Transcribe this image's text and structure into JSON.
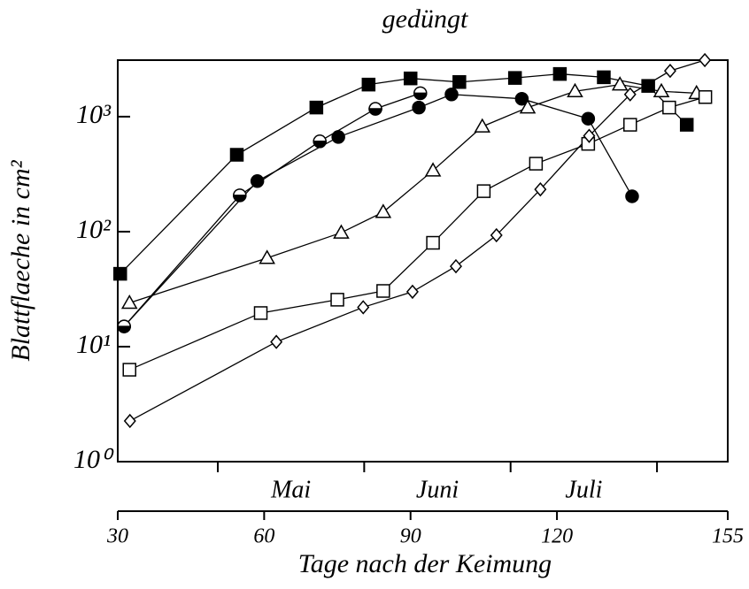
{
  "chart_data": {
    "type": "line",
    "title": "gedüngt",
    "x_label": "Tage nach der Keimung",
    "y_label": "Blattflaeche in cm²",
    "log_y": true,
    "xlim": [
      30,
      155
    ],
    "xticks": [
      30,
      60,
      90,
      120,
      155
    ],
    "ylim": [
      1,
      3100
    ],
    "yticks": [
      {
        "value": 1,
        "label": "10⁰"
      },
      {
        "value": 10,
        "label": "10¹"
      },
      {
        "value": 100,
        "label": "10²"
      },
      {
        "value": 1000,
        "label": "10³"
      }
    ],
    "months": [
      "Mai",
      "Juni",
      "Juli"
    ],
    "month_bounds": [
      50.5,
      80.5,
      110.5,
      140.5
    ],
    "series": [
      {
        "marker": "square",
        "filled": true,
        "color": "#000",
        "x": [
          30.5,
          54.4,
          70.7,
          81.4,
          90,
          100,
          111.4,
          120.6,
          129.6,
          138.7,
          146.6
        ],
        "values": [
          43,
          466,
          1200,
          1900,
          2150,
          2000,
          2170,
          2350,
          2200,
          1850,
          850
        ]
      },
      {
        "marker": "circle",
        "filled": true,
        "color": "#000",
        "x": [
          31.3,
          58.6,
          75.2,
          91.7,
          98.4,
          112.8,
          126.4,
          135.4
        ],
        "values": [
          15,
          275,
          665,
          1200,
          1560,
          1430,
          960,
          203
        ]
      },
      {
        "marker": "halfcircle",
        "filled": false,
        "color": "#000",
        "x": [
          31.3,
          55,
          71.4,
          82.8,
          92
        ],
        "values": [
          15,
          207,
          610,
          1170,
          1600
        ]
      },
      {
        "marker": "triangle",
        "filled": false,
        "color": "#000",
        "x": [
          32.4,
          60.6,
          75.8,
          84.4,
          94.6,
          104.7,
          114,
          123.7,
          132.9,
          141.4,
          148.6
        ],
        "values": [
          24,
          59,
          98,
          148,
          340,
          820,
          1200,
          1660,
          1900,
          1660,
          1600
        ]
      },
      {
        "marker": "square",
        "filled": false,
        "color": "#000",
        "x": [
          32.4,
          59.3,
          75,
          84.4,
          94.6,
          105,
          115.7,
          126.4,
          135,
          143,
          150.4
        ],
        "values": [
          6.3,
          19.6,
          25.6,
          30.5,
          80,
          225,
          390,
          580,
          850,
          1200,
          1480
        ]
      },
      {
        "marker": "diamond",
        "filled": false,
        "color": "#000",
        "x": [
          32.5,
          62.5,
          80.3,
          90.4,
          99.3,
          107.6,
          116.6,
          126.6,
          135,
          143.2,
          150.3
        ],
        "values": [
          2.26,
          11,
          22,
          30,
          50,
          93,
          233,
          680,
          1560,
          2500,
          3100
        ]
      }
    ]
  }
}
